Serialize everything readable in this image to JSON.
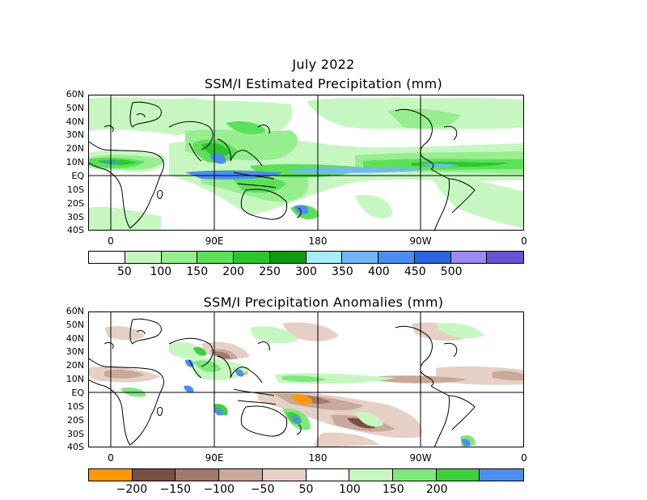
{
  "header": {
    "date": "July 2022",
    "map1_title": "SSM/I Estimated Precipitation (mm)",
    "map2_title": "SSM/I Precipitation Anomalies (mm)"
  },
  "lat_labels": [
    "60N",
    "50N",
    "40N",
    "30N",
    "20N",
    "10N",
    "EQ",
    "10S",
    "20S",
    "30S",
    "40S"
  ],
  "lon_labels": [
    "0",
    "90E",
    "180",
    "90W",
    "0"
  ],
  "precip_colorbar": {
    "colors": [
      "#ffffff",
      "#c6f7c0",
      "#96ee8e",
      "#5ce05a",
      "#2cc62c",
      "#119a11",
      "#a8ecfa",
      "#73b6f6",
      "#4c8ef0",
      "#2a66e0",
      "#9b8af2",
      "#6a52d2"
    ],
    "labels": [
      "50",
      "100",
      "150",
      "200",
      "250",
      "300",
      "350",
      "400",
      "450",
      "500"
    ]
  },
  "anomaly_colorbar": {
    "colors": [
      "#ff9900",
      "#7a5042",
      "#a07a6a",
      "#c8a89a",
      "#e6cfc4",
      "#ffffff",
      "#c6f7c0",
      "#7fe87a",
      "#3ecf3e",
      "#4c8ef0"
    ],
    "labels": [
      "−200",
      "−150",
      "−100",
      "−50",
      "50",
      "100",
      "150",
      "200"
    ]
  }
}
